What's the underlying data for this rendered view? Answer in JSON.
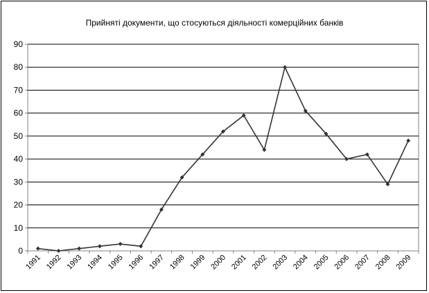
{
  "chart_data": {
    "type": "line",
    "title": "Прийняті документи, що стосуються діяльності комерційних банків",
    "xlabel": "",
    "ylabel": "",
    "categories": [
      "1991",
      "1992",
      "1993",
      "1994",
      "1995",
      "1996",
      "1997",
      "1998",
      "1999",
      "2000",
      "2001",
      "2002",
      "2003",
      "2004",
      "2005",
      "2006",
      "2007",
      "2008",
      "2009"
    ],
    "series": [
      {
        "values": [
          1,
          0,
          1,
          2,
          3,
          2,
          18,
          32,
          42,
          52,
          59,
          44,
          80,
          61,
          51,
          40,
          42,
          29,
          48
        ]
      }
    ],
    "ylim": [
      0,
      90
    ],
    "yticks": [
      "0",
      "10",
      "20",
      "30",
      "40",
      "50",
      "60",
      "70",
      "80",
      "90"
    ],
    "grid": "horizontal",
    "legend": "none",
    "colors": {
      "line": "#333333",
      "marker": "#333333",
      "grid": "#000000",
      "axis": "#808080"
    }
  }
}
